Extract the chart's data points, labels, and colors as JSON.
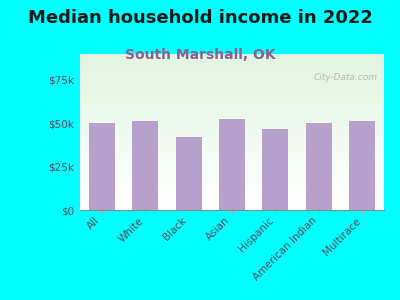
{
  "title": "Median household income in 2022",
  "subtitle": "South Marshall, OK",
  "categories": [
    "All",
    "White",
    "Black",
    "Asian",
    "Hispanic",
    "American Indian",
    "Multirace"
  ],
  "values": [
    50000,
    51500,
    42000,
    52500,
    47000,
    50000,
    51500
  ],
  "bar_color": "#b8a0cc",
  "background_color": "#00ffff",
  "ylim": [
    0,
    90000
  ],
  "yticks": [
    0,
    25000,
    50000,
    75000
  ],
  "ytick_labels": [
    "$0",
    "$25k",
    "$50k",
    "$75k"
  ],
  "title_fontsize": 13,
  "subtitle_fontsize": 10,
  "tick_fontsize": 7.5,
  "watermark": "City-Data.com",
  "title_color": "#1a1a1a",
  "subtitle_color": "#8B6090",
  "tick_label_color": "#5a4a5a"
}
